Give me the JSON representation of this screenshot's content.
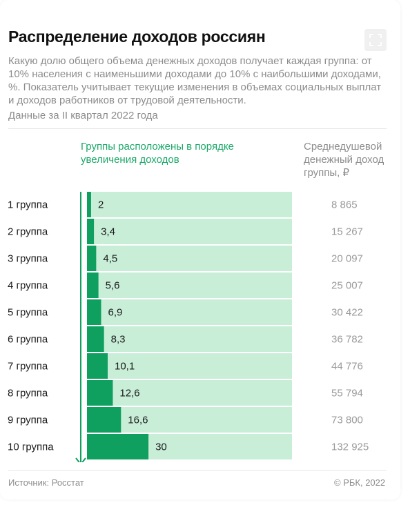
{
  "header": {
    "title": "Распределение доходов россиян",
    "subtitle": "Какую долю общего объема денежных доходов получает каждая группа: от 10% населения с наименьшими доходами до 10% с наибольшими доходами, %. Показатель учитывает текущие изменения в объемах социальных выплат и доходов работников от трудовой деятельности.",
    "period": "Данные за II квартал 2022 года"
  },
  "legend": {
    "groups_note": "Группы расположены в порядке увеличения доходов",
    "income_header": "Среднедушевой денежный доход группы, ₽"
  },
  "chart_data": {
    "type": "bar",
    "orientation": "horizontal",
    "title": "Распределение доходов россиян",
    "categories": [
      "1 группа",
      "2 группа",
      "3 группа",
      "4 группа",
      "5 группа",
      "6 группа",
      "7 группа",
      "8 группа",
      "9 группа",
      "10 группа"
    ],
    "values": [
      2,
      3.4,
      4.5,
      5.6,
      6.9,
      8.3,
      10.1,
      12.6,
      16.6,
      30
    ],
    "value_labels": [
      "2",
      "3,4",
      "4,5",
      "5,6",
      "6,9",
      "8,3",
      "10,1",
      "12,6",
      "16,6",
      "30"
    ],
    "income_labels": [
      "8 865",
      "15 267",
      "20 097",
      "25 007",
      "30 422",
      "36 782",
      "44 776",
      "55 794",
      "73 800",
      "132 925"
    ],
    "xlim": [
      0,
      100
    ],
    "unit": "%",
    "bar_color": "#0f9f5f",
    "background_color": "#c8eed8",
    "arrow_color": "#0f9f5f"
  },
  "footer": {
    "source": "Источник: Росстат",
    "copyright": "© РБК, 2022"
  },
  "icons": {
    "expand": "expand-icon"
  }
}
